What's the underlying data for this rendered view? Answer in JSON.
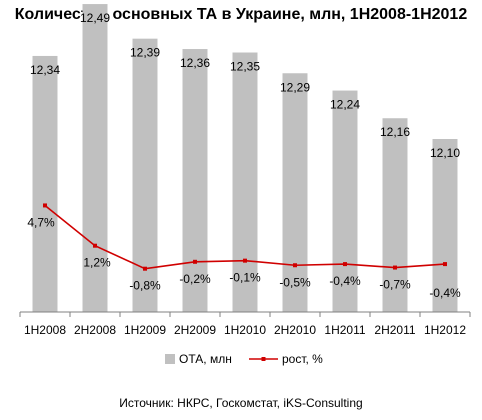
{
  "colors": {
    "bar": "#c0c0c0",
    "line": "#d00000",
    "axis": "#808080"
  },
  "chart_data": {
    "type": "bar",
    "title": "Количество основных ТА в Украине, млн, 1Н2008-1Н2012",
    "categories": [
      "1H2008",
      "2H2008",
      "1H2009",
      "2H2009",
      "1H2010",
      "2H2010",
      "1H2011",
      "2H2011",
      "1H2012"
    ],
    "series": [
      {
        "name": "ОТА, млн",
        "type": "bar",
        "values": [
          12.34,
          12.49,
          12.39,
          12.36,
          12.35,
          12.29,
          12.24,
          12.16,
          12.1
        ],
        "labels": [
          "12,34",
          "12,49",
          "12,39",
          "12,36",
          "12,35",
          "12,29",
          "12,24",
          "12,16",
          "12,10"
        ]
      },
      {
        "name": "рост, %",
        "type": "line",
        "values": [
          4.7,
          1.2,
          -0.8,
          -0.2,
          -0.1,
          -0.5,
          -0.4,
          -0.7,
          -0.4
        ],
        "labels": [
          "4,7%",
          "1,2%",
          "-0,8%",
          "-0,2%",
          "-0,1%",
          "-0,5%",
          "-0,4%",
          "-0,7%",
          "-0,4%"
        ]
      }
    ],
    "legend": "bottom",
    "grid": false
  },
  "source": "Источник: НКРС, Госкомстат, iKS-Consulting"
}
